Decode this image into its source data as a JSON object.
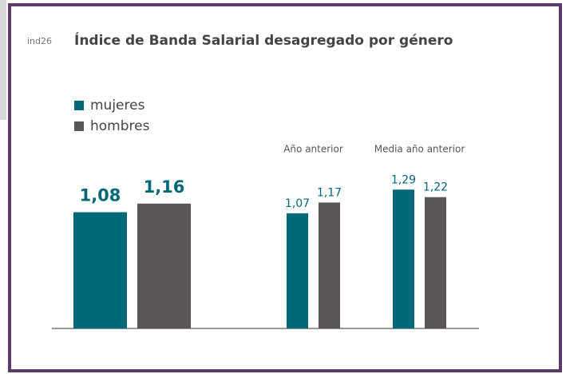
{
  "chart_data": {
    "type": "bar",
    "code": "ind26",
    "title": "Índice de Banda Salarial desagregado por género",
    "categories": [
      null,
      "Año anterior",
      "Media año anterior"
    ],
    "series": [
      {
        "name": "mujeres",
        "color": "#006877",
        "values": [
          1.08,
          1.07,
          1.29
        ],
        "value_labels": [
          "1,08",
          "1,07",
          "1,29"
        ]
      },
      {
        "name": "hombres",
        "color": "#5a5559",
        "values": [
          1.16,
          1.17,
          1.22
        ],
        "value_labels": [
          "1,16",
          "1,17",
          "1,22"
        ]
      }
    ],
    "ylim": [
      0,
      3
    ],
    "legend": "top-left"
  }
}
